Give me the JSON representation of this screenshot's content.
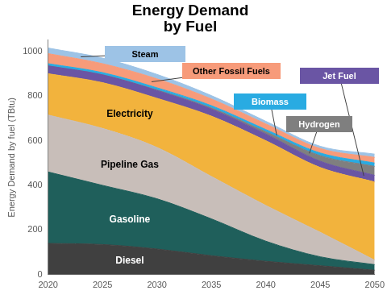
{
  "chart_data": {
    "type": "area",
    "title": "Energy Demand by Fuel",
    "y_label": "Energy Demand by fuel (TBtu)",
    "x": [
      2020,
      2025,
      2030,
      2035,
      2040,
      2045,
      2050
    ],
    "xlim": [
      2020,
      2050
    ],
    "xticks": [
      2020,
      2025,
      2030,
      2035,
      2040,
      2045,
      2050
    ],
    "ylim": [
      0,
      1050
    ],
    "yticks": [
      0,
      200,
      400,
      600,
      800,
      1000
    ],
    "stacked": true,
    "grid": false,
    "series": [
      {
        "name": "Diesel",
        "color": "#404040",
        "values": [
          140,
          135,
          115,
          85,
          60,
          40,
          20
        ]
      },
      {
        "name": "Gasoline",
        "color": "#1F5F5B",
        "values": [
          320,
          265,
          225,
          165,
          90,
          40,
          25
        ]
      },
      {
        "name": "Pipeline Gas",
        "color": "#C8BEB9",
        "values": [
          255,
          255,
          230,
          190,
          160,
          110,
          20
        ]
      },
      {
        "name": "Electricity",
        "color": "#F2B33D",
        "values": [
          185,
          205,
          220,
          270,
          290,
          290,
          350
        ]
      },
      {
        "name": "Jet Fuel",
        "color": "#6A55A4",
        "values": [
          35,
          35,
          35,
          32,
          30,
          28,
          30
        ]
      },
      {
        "name": "Hydrogen",
        "color": "#7F7F7F",
        "values": [
          0,
          0,
          2,
          5,
          10,
          25,
          40
        ]
      },
      {
        "name": "Biomass",
        "color": "#29ABE2",
        "values": [
          10,
          10,
          10,
          10,
          10,
          12,
          15
        ]
      },
      {
        "name": "Other Fossil Fuels",
        "color": "#F79B7A",
        "values": [
          45,
          40,
          40,
          30,
          25,
          20,
          25
        ]
      },
      {
        "name": "Steam",
        "color": "#9DC3E6",
        "values": [
          25,
          25,
          20,
          15,
          12,
          10,
          15
        ]
      }
    ]
  }
}
